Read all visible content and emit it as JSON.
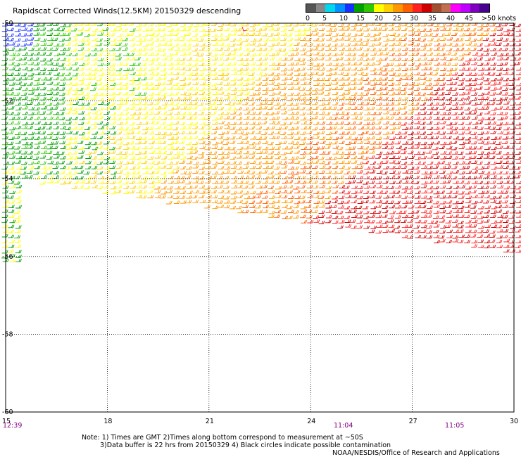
{
  "title": "Rapidscat Corrected Winds(12.5KM) 20150329 descending",
  "legend": {
    "labels": [
      "0",
      "5",
      "10",
      "15",
      "20",
      "25",
      "30",
      "35",
      "40",
      "45",
      ">50 knots"
    ],
    "colors": [
      "#555555",
      "#888888",
      "#00d8f0",
      "#0090ff",
      "#1830ff",
      "#00a000",
      "#30c800",
      "#ffff00",
      "#ffd000",
      "#ff9800",
      "#ff6000",
      "#ff2020",
      "#d00000",
      "#a05030",
      "#c07050",
      "#ff00ff",
      "#c000ff",
      "#8000c0",
      "#480090"
    ]
  },
  "lat_labels": [
    "-50",
    "-52",
    "-54",
    "-56",
    "-58",
    "-60"
  ],
  "lon_labels": [
    "15",
    "18",
    "21",
    "24",
    "27",
    "30"
  ],
  "time_labels": [
    "12:39",
    "11:04",
    "11:05"
  ],
  "notes": {
    "line1": "Note: 1) Times are GMT 2)Times along bottom correspond to measurement at ~50S",
    "line2": "3)Data buffer is 22 hrs from 20150329 4) Black circles indicate possible contamination",
    "credit": "NOAA/NESDIS/Office of Research and Applications"
  },
  "map": {
    "lat_range": [
      -60,
      -50
    ],
    "lon_range": [
      15,
      30
    ],
    "grid": "dotted"
  }
}
